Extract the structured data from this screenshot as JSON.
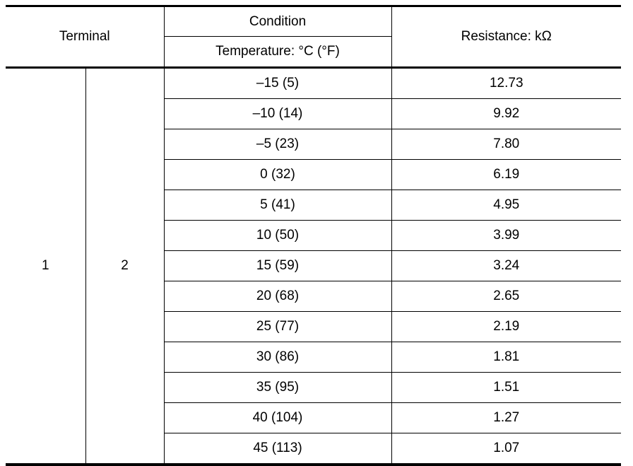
{
  "table": {
    "header": {
      "terminal": "Terminal",
      "condition": "Condition",
      "temperature": "Temperature: °C (°F)",
      "resistance": "Resistance: kΩ"
    },
    "terminal_a": "1",
    "terminal_b": "2",
    "rows": [
      {
        "temperature": "–15 (5)",
        "resistance": "12.73"
      },
      {
        "temperature": "–10 (14)",
        "resistance": "9.92"
      },
      {
        "temperature": "–5 (23)",
        "resistance": "7.80"
      },
      {
        "temperature": "0 (32)",
        "resistance": "6.19"
      },
      {
        "temperature": "5 (41)",
        "resistance": "4.95"
      },
      {
        "temperature": "10 (50)",
        "resistance": "3.99"
      },
      {
        "temperature": "15 (59)",
        "resistance": "3.24"
      },
      {
        "temperature": "20 (68)",
        "resistance": "2.65"
      },
      {
        "temperature": "25 (77)",
        "resistance": "2.19"
      },
      {
        "temperature": "30 (86)",
        "resistance": "1.81"
      },
      {
        "temperature": "35 (95)",
        "resistance": "1.51"
      },
      {
        "temperature": "40 (104)",
        "resistance": "1.27"
      },
      {
        "temperature": "45 (113)",
        "resistance": "1.07"
      }
    ]
  }
}
